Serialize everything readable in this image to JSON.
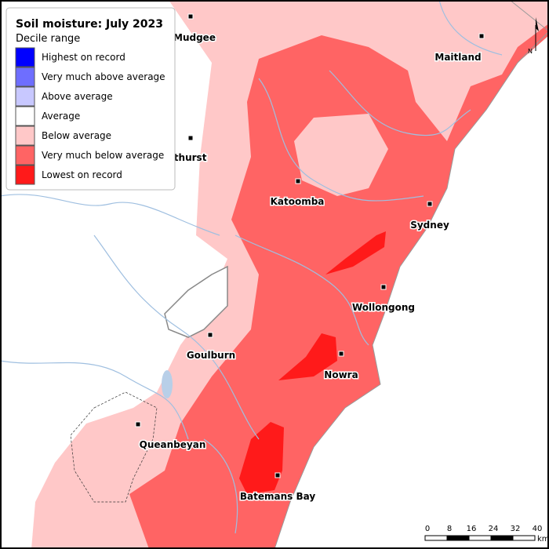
{
  "title": "Soil moisture: July 2023",
  "legend": {
    "subtitle": "Decile range",
    "items": [
      {
        "label": "Highest on record",
        "color": "#0000ff"
      },
      {
        "label": "Very much above average",
        "color": "#6e6eff"
      },
      {
        "label": "Above average",
        "color": "#c8c8ff"
      },
      {
        "label": "Average",
        "color": "#ffffff"
      },
      {
        "label": "Below average",
        "color": "#ffc8c8"
      },
      {
        "label": "Very much below average",
        "color": "#ff6464"
      },
      {
        "label": "Lowest on record",
        "color": "#ff1a1a"
      }
    ]
  },
  "towns": [
    "Mudgee",
    "Maitland",
    "Bathurst",
    "Katoomba",
    "Sydney",
    "Wollongong",
    "Goulburn",
    "Nowra",
    "Queanbeyan",
    "Batemans Bay"
  ],
  "scale_bar": {
    "ticks": [
      0,
      8,
      16,
      24,
      32,
      40
    ],
    "unit": "km"
  },
  "north_label": "N"
}
